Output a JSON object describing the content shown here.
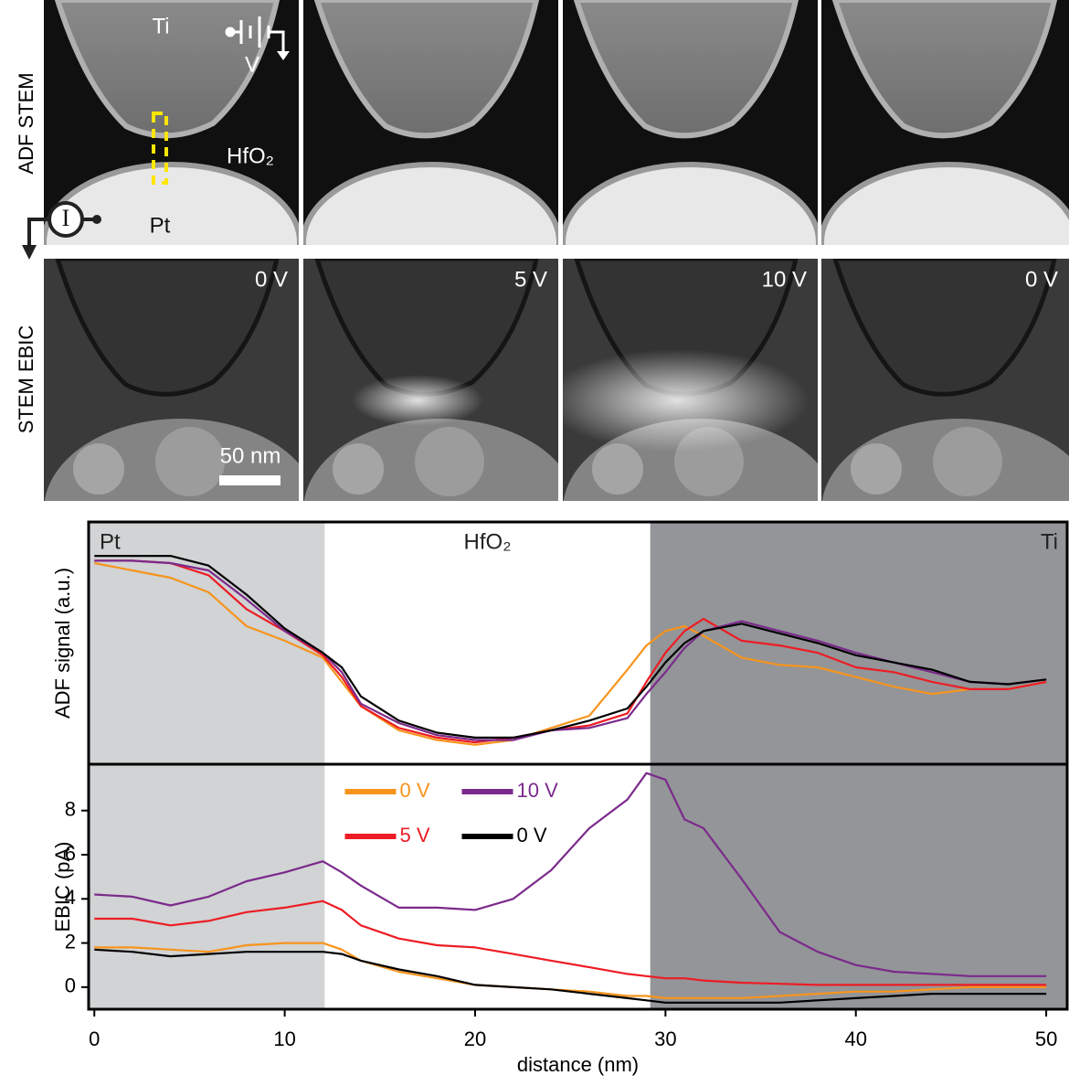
{
  "images": {
    "row_labels": [
      "ADF STEM",
      "STEM EBIC"
    ],
    "adf_labels": {
      "ti": "Ti",
      "v": "V",
      "hfo2": "HfO₂",
      "pt": "Pt",
      "i": "I"
    },
    "ebic_voltages": [
      "0 V",
      "5 V",
      "10 V",
      "0 V"
    ],
    "scale_bar": "50 nm"
  },
  "chart_data": [
    {
      "type": "line",
      "ylabel": "ADF signal (a.u.)",
      "xlim": [
        -0.3,
        51.1
      ],
      "ylim": [
        0,
        10
      ],
      "regions": [
        {
          "label": "Pt",
          "color": "#d1d3d4",
          "start": -0.3,
          "end": 12.1
        },
        {
          "label": "HfO₂",
          "color": "#ffffff",
          "start": 12.1,
          "end": 29.2
        },
        {
          "label": "Ti",
          "color": "#939598",
          "start": 29.2,
          "end": 51.1
        }
      ],
      "x": [
        0,
        2,
        4,
        6,
        8,
        10,
        12,
        13,
        14,
        16,
        18,
        20,
        22,
        24,
        26,
        28,
        29,
        30,
        31,
        32,
        34,
        36,
        38,
        40,
        42,
        44,
        46,
        48,
        50
      ],
      "series": [
        {
          "color": "#f7941d",
          "values": [
            8.3,
            8.0,
            7.7,
            7.1,
            5.7,
            5.1,
            4.4,
            3.4,
            2.4,
            1.4,
            1.0,
            0.8,
            1.0,
            1.5,
            2.0,
            3.9,
            4.9,
            5.5,
            5.7,
            5.3,
            4.4,
            4.1,
            4.0,
            3.6,
            3.2,
            2.9,
            3.1,
            3.1,
            3.4
          ]
        },
        {
          "color": "#ed1c24",
          "values": [
            8.4,
            8.4,
            8.3,
            7.8,
            6.4,
            5.5,
            4.5,
            3.6,
            2.4,
            1.5,
            1.1,
            0.9,
            1.1,
            1.4,
            1.6,
            2.1,
            3.4,
            4.6,
            5.5,
            6.0,
            5.1,
            4.9,
            4.6,
            4.0,
            3.8,
            3.4,
            3.1,
            3.1,
            3.4
          ]
        },
        {
          "color": "#7b2a8b",
          "values": [
            8.4,
            8.4,
            8.3,
            8.0,
            6.8,
            5.5,
            4.6,
            3.8,
            2.5,
            1.7,
            1.2,
            1.0,
            1.0,
            1.4,
            1.5,
            1.9,
            2.9,
            3.8,
            4.8,
            5.5,
            5.9,
            5.5,
            5.1,
            4.6,
            4.2,
            3.8,
            3.4,
            3.3,
            3.5
          ]
        },
        {
          "color": "#000000",
          "values": [
            8.6,
            8.6,
            8.6,
            8.2,
            7.0,
            5.6,
            4.6,
            4.0,
            2.8,
            1.8,
            1.3,
            1.1,
            1.1,
            1.4,
            1.8,
            2.3,
            3.2,
            4.2,
            5.0,
            5.5,
            5.8,
            5.4,
            5.0,
            4.5,
            4.2,
            3.9,
            3.4,
            3.3,
            3.5
          ]
        }
      ]
    },
    {
      "type": "line",
      "ylabel": "EBIC (pA)",
      "xlabel": "distance (nm)",
      "xlim": [
        -0.3,
        51.1
      ],
      "ylim": [
        -1,
        10.1
      ],
      "xticks": [
        0,
        10,
        20,
        30,
        40,
        50
      ],
      "yticks": [
        0,
        2,
        4,
        6,
        8
      ],
      "legend": "top-center",
      "x": [
        0,
        2,
        4,
        6,
        8,
        10,
        12,
        13,
        14,
        16,
        18,
        20,
        22,
        24,
        26,
        28,
        29,
        30,
        31,
        32,
        34,
        36,
        38,
        40,
        42,
        44,
        46,
        48,
        50
      ],
      "series": [
        {
          "name": "0 V",
          "color": "#f7941d",
          "values": [
            1.8,
            1.8,
            1.7,
            1.6,
            1.9,
            2.0,
            2.0,
            1.7,
            1.2,
            0.7,
            0.4,
            0.1,
            0.0,
            -0.1,
            -0.2,
            -0.4,
            -0.4,
            -0.5,
            -0.5,
            -0.5,
            -0.5,
            -0.4,
            -0.3,
            -0.2,
            -0.2,
            -0.1,
            0.0,
            0.0,
            0.0
          ]
        },
        {
          "name": "5 V",
          "color": "#ed1c24",
          "values": [
            3.1,
            3.1,
            2.8,
            3.0,
            3.4,
            3.6,
            3.9,
            3.5,
            2.8,
            2.2,
            1.9,
            1.8,
            1.5,
            1.2,
            0.9,
            0.6,
            0.5,
            0.4,
            0.4,
            0.3,
            0.2,
            0.15,
            0.1,
            0.1,
            0.1,
            0.1,
            0.1,
            0.1,
            0.1
          ]
        },
        {
          "name": "10 V",
          "color": "#7b2a8b",
          "values": [
            4.2,
            4.1,
            3.7,
            4.1,
            4.8,
            5.2,
            5.7,
            5.2,
            4.6,
            3.6,
            3.6,
            3.5,
            4.0,
            5.3,
            7.2,
            8.5,
            9.7,
            9.4,
            7.6,
            7.2,
            4.9,
            2.5,
            1.6,
            1.0,
            0.7,
            0.6,
            0.5,
            0.5,
            0.5
          ]
        },
        {
          "name": "0 V",
          "color": "#000000",
          "values": [
            1.7,
            1.6,
            1.4,
            1.5,
            1.6,
            1.6,
            1.6,
            1.5,
            1.2,
            0.8,
            0.5,
            0.1,
            0.0,
            -0.1,
            -0.3,
            -0.5,
            -0.6,
            -0.7,
            -0.7,
            -0.7,
            -0.7,
            -0.7,
            -0.6,
            -0.5,
            -0.4,
            -0.3,
            -0.3,
            -0.3,
            -0.3
          ]
        }
      ]
    }
  ]
}
